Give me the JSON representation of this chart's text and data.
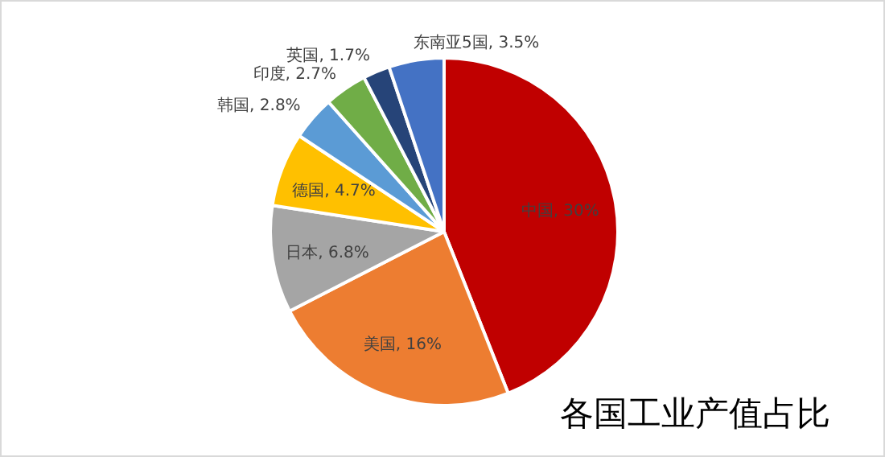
{
  "chart_data": {
    "type": "pie",
    "title": "各国工业产值占比",
    "categories": [
      "中国",
      "美国",
      "日本",
      "德国",
      "韩国",
      "印度",
      "英国",
      "东南亚5国"
    ],
    "values": [
      30,
      16,
      6.8,
      4.7,
      2.8,
      2.7,
      1.7,
      3.5
    ],
    "value_labels": [
      "30%",
      "16%",
      "6.8%",
      "4.7%",
      "2.8%",
      "2.7%",
      "1.7%",
      "3.5%"
    ],
    "colors": [
      "#c00000",
      "#ed7d31",
      "#a5a5a5",
      "#ffc000",
      "#5b9bd5",
      "#70ad47",
      "#264478",
      "#4472c4"
    ]
  }
}
